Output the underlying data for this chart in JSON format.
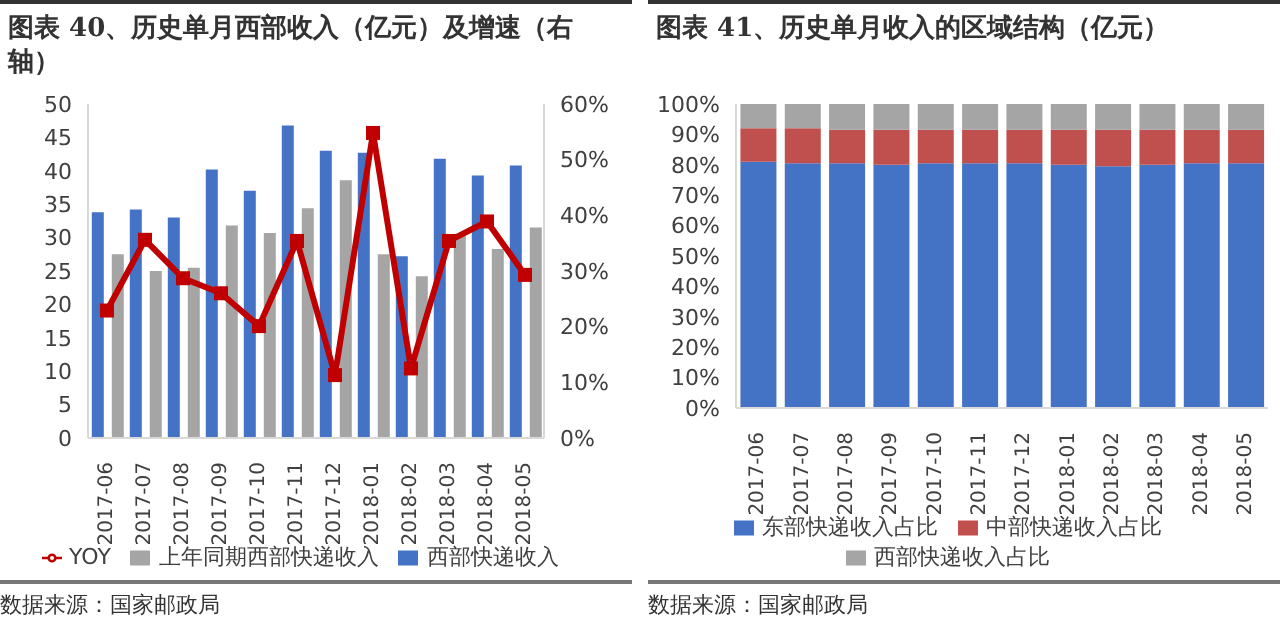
{
  "chart_data": [
    {
      "type": "bar",
      "title": "图表 40、历史单月西部收入（亿元）及增速（右轴）",
      "categories": [
        "2017-06",
        "2017-07",
        "2017-08",
        "2017-09",
        "2017-10",
        "2017-11",
        "2017-12",
        "2018-01",
        "2018-02",
        "2018-03",
        "2018-04",
        "2018-05"
      ],
      "series": [
        {
          "name": "西部快递收入",
          "color": "#4472c4",
          "values": [
            33.8,
            34.2,
            33,
            40.2,
            37,
            46.8,
            43,
            42.7,
            27.2,
            41.8,
            39.3,
            40.8
          ]
        },
        {
          "name": "上年同期西部快递收入",
          "color": "#a5a5a5",
          "values": [
            27.5,
            25,
            25.5,
            31.8,
            30.7,
            34.4,
            38.6,
            27.5,
            24.2,
            30.5,
            28.3,
            31.5
          ]
        },
        {
          "name": "YOY",
          "type": "line",
          "axis": "y2",
          "color": "#c00000",
          "values": [
            22.9,
            35.6,
            28.7,
            26,
            20.1,
            35.4,
            11.3,
            54.8,
            12.5,
            35.4,
            38.9,
            29.3
          ]
        }
      ],
      "ylim": [
        0,
        50
      ],
      "yticks": [
        0,
        5,
        10,
        15,
        20,
        25,
        30,
        35,
        40,
        45,
        50
      ],
      "y2lim": [
        0,
        60
      ],
      "y2ticks": [
        {
          "value": 0,
          "label": "0%"
        },
        {
          "value": 10,
          "label": "10%"
        },
        {
          "value": 20,
          "label": "20%"
        },
        {
          "value": 30,
          "label": "30%"
        },
        {
          "value": 40,
          "label": "40%"
        },
        {
          "value": 50,
          "label": "50%"
        },
        {
          "value": 60,
          "label": "60%"
        }
      ],
      "marker": "square",
      "grid": false,
      "legend": "bottom",
      "annotations": [
        "数据来源：国家邮政局"
      ]
    },
    {
      "type": "bar",
      "title": "图表 41、历史单月收入的区域结构（亿元）",
      "categories": [
        "2017-06",
        "2017-07",
        "2017-08",
        "2017-09",
        "2017-10",
        "2017-11",
        "2017-12",
        "2018-01",
        "2018-02",
        "2018-03",
        "2018-04",
        "2018-05"
      ],
      "series": [
        {
          "name": "东部快递收入占比",
          "color": "#4472c4",
          "values": [
            81,
            80.5,
            80.5,
            80,
            80.5,
            80.5,
            80.5,
            80,
            79.5,
            80,
            80.5,
            80.5
          ]
        },
        {
          "name": "中部快递收入占比",
          "color": "#c0504d",
          "values": [
            11,
            11.5,
            11,
            11.5,
            11,
            11,
            11,
            11.5,
            12,
            11.5,
            11,
            11
          ]
        },
        {
          "name": "西部快递收入占比",
          "color": "#a5a5a5",
          "values": [
            8,
            8,
            8.5,
            8.5,
            8.5,
            8.5,
            8.5,
            8.5,
            8.5,
            8.5,
            8.5,
            8.5
          ]
        }
      ],
      "stacked": true,
      "ylim": [
        0,
        100
      ],
      "yticks": [
        {
          "value": 0,
          "label": "0%"
        },
        {
          "value": 10,
          "label": "10%"
        },
        {
          "value": 20,
          "label": "20%"
        },
        {
          "value": 30,
          "label": "30%"
        },
        {
          "value": 40,
          "label": "40%"
        },
        {
          "value": 50,
          "label": "50%"
        },
        {
          "value": 60,
          "label": "60%"
        },
        {
          "value": 70,
          "label": "70%"
        },
        {
          "value": 80,
          "label": "80%"
        },
        {
          "value": 90,
          "label": "90%"
        },
        {
          "value": 100,
          "label": "100%"
        }
      ],
      "grid": false,
      "legend": "bottom",
      "annotations": [
        "数据来源：国家邮政局"
      ]
    }
  ]
}
